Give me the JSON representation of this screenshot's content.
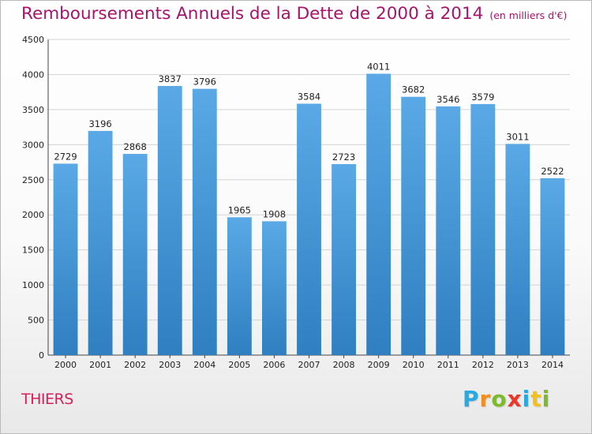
{
  "chart_data": {
    "type": "bar",
    "title": "Remboursements Annuels de la Dette de 2000 à 2014",
    "subtitle": "(en milliers d'€)",
    "categories": [
      "2000",
      "2001",
      "2002",
      "2003",
      "2004",
      "2005",
      "2006",
      "2007",
      "2008",
      "2009",
      "2010",
      "2011",
      "2012",
      "2013",
      "2014"
    ],
    "values": [
      2729,
      3196,
      2868,
      3837,
      3796,
      1965,
      1908,
      3584,
      2723,
      4011,
      3682,
      3546,
      3579,
      3011,
      2522
    ],
    "ylim": [
      0,
      4500
    ],
    "yticks": [
      0,
      500,
      1000,
      1500,
      2000,
      2500,
      3000,
      3500,
      4000,
      4500
    ],
    "grid": true,
    "bar_color_top": "#5aa9e6",
    "bar_color_bottom": "#2f7fc1"
  },
  "footer": {
    "city": "THIERS",
    "logo_letters": [
      "P",
      "r",
      "o",
      "x",
      "i",
      "t",
      "i"
    ],
    "logo_colors": [
      "#2aa8e0",
      "#f28c1b",
      "#7dbb2b",
      "#e8382a",
      "#2aa8e0",
      "#f2c21b",
      "#7dbb2b"
    ]
  }
}
